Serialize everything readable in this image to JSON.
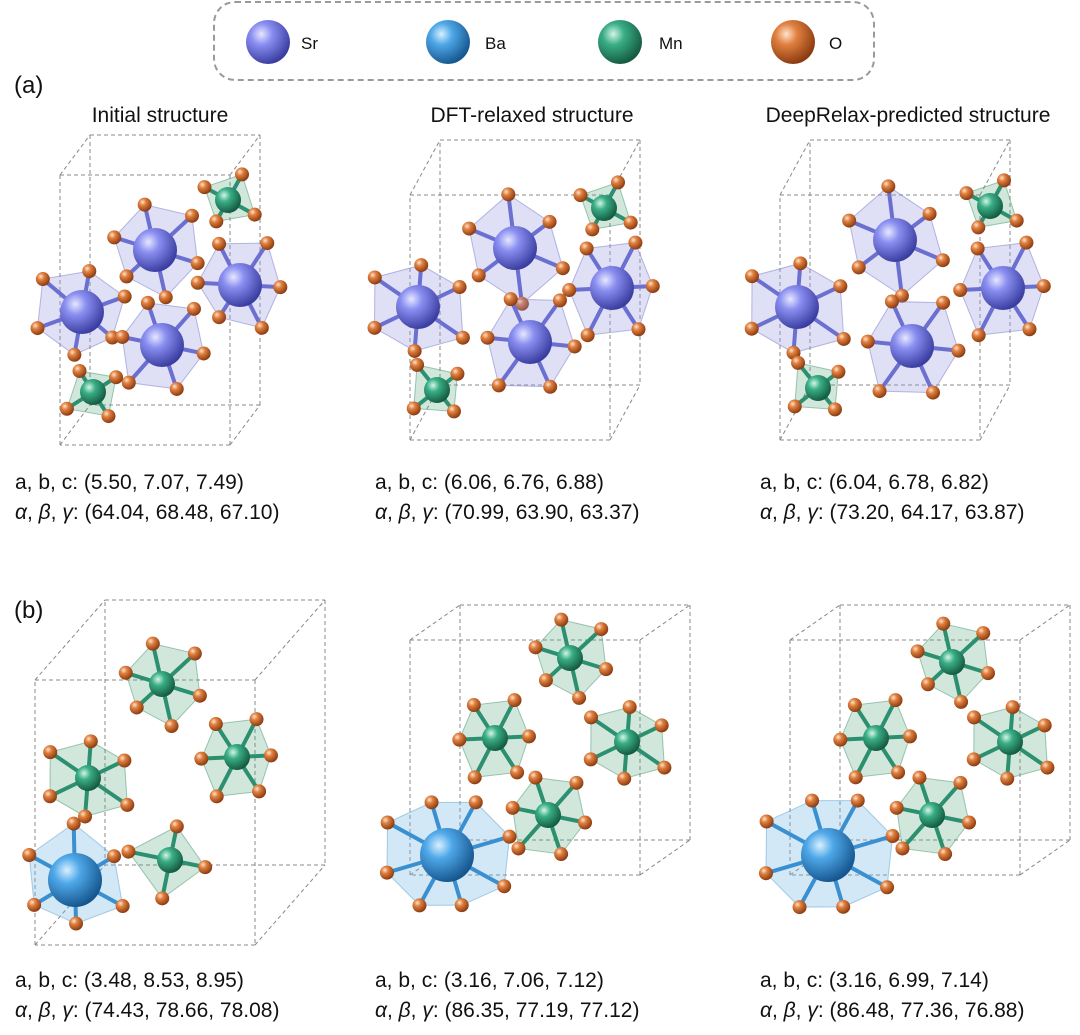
{
  "legend": {
    "items": [
      {
        "label": "Sr",
        "color": "#7b7ee0"
      },
      {
        "label": "Ba",
        "color": "#3f9ede"
      },
      {
        "label": "Mn",
        "color": "#2fa07a"
      },
      {
        "label": "O",
        "color": "#dd7a3c"
      }
    ]
  },
  "panels": [
    {
      "label": "(a)",
      "columns": [
        {
          "title": "Initial structure",
          "abc": "(5.50, 7.07, 7.49)",
          "angles": "(64.04, 68.48, 67.10)"
        },
        {
          "title": "DFT-relaxed structure",
          "abc": "(6.06, 6.76, 6.88)",
          "angles": "(70.99, 63.90, 63.37)"
        },
        {
          "title": "DeepRelax-predicted structure",
          "abc": "(6.04, 6.78, 6.82)",
          "angles": "(73.20, 64.17, 63.87)"
        }
      ]
    },
    {
      "label": "(b)",
      "columns": [
        {
          "abc": "(3.48, 8.53, 8.95)",
          "angles": "(74.43, 78.66, 78.08)"
        },
        {
          "abc": "(3.16, 7.06, 7.12)",
          "angles": "(86.35, 77.19, 77.12)"
        },
        {
          "abc": "(3.16, 6.99, 7.14)",
          "angles": "(86.48, 77.36, 76.88)"
        }
      ]
    }
  ],
  "text": {
    "abc_prefix": "a, b, c: ",
    "alpha": "α",
    "beta": "β",
    "gamma": "γ",
    "comma": ", ",
    "colon": ": "
  }
}
